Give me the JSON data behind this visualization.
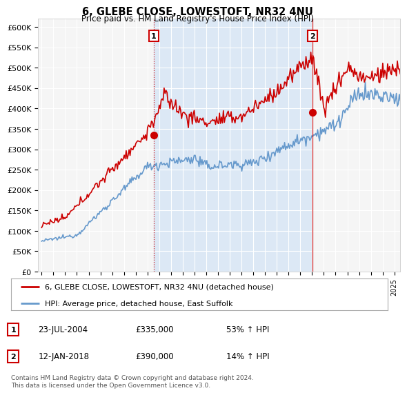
{
  "title": "6, GLEBE CLOSE, LOWESTOFT, NR32 4NU",
  "subtitle": "Price paid vs. HM Land Registry's House Price Index (HPI)",
  "ylabel_ticks": [
    "£0",
    "£50K",
    "£100K",
    "£150K",
    "£200K",
    "£250K",
    "£300K",
    "£350K",
    "£400K",
    "£450K",
    "£500K",
    "£550K",
    "£600K"
  ],
  "ylim": [
    0,
    620000
  ],
  "ytick_vals": [
    0,
    50000,
    100000,
    150000,
    200000,
    250000,
    300000,
    350000,
    400000,
    450000,
    500000,
    550000,
    600000
  ],
  "hpi_color": "#6699cc",
  "price_color": "#cc0000",
  "sale1_date": "23-JUL-2004",
  "sale1_price": "£335,000",
  "sale1_hpi": "53% ↑ HPI",
  "sale2_date": "12-JAN-2018",
  "sale2_price": "£390,000",
  "sale2_hpi": "14% ↑ HPI",
  "legend_line1": "6, GLEBE CLOSE, LOWESTOFT, NR32 4NU (detached house)",
  "legend_line2": "HPI: Average price, detached house, East Suffolk",
  "footnote": "Contains HM Land Registry data © Crown copyright and database right 2024.\nThis data is licensed under the Open Government Licence v3.0.",
  "shade_color": "#dce8f5",
  "plot_bg_color": "#f5f5f5",
  "grid_color": "#ffffff"
}
